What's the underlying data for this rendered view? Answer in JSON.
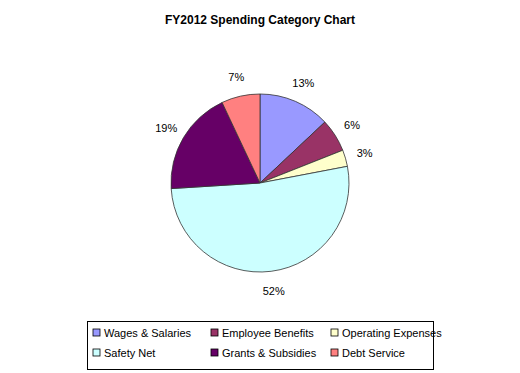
{
  "chart_data": {
    "type": "pie",
    "title": "FY2012 Spending Category Chart",
    "categories": [
      "Wages & Salaries",
      "Employee Benefits",
      "Operating Expenses",
      "Safety Net",
      "Grants & Subsidies",
      "Debt Service"
    ],
    "values": [
      13,
      6,
      3,
      52,
      19,
      7
    ],
    "value_labels": [
      "13%",
      "6%",
      "3%",
      "52%",
      "19%",
      "7%"
    ],
    "colors": [
      "#9999ff",
      "#993366",
      "#ffffcc",
      "#ccffff",
      "#660066",
      "#ff8080"
    ],
    "data_labels": true,
    "legend": "bottom"
  }
}
